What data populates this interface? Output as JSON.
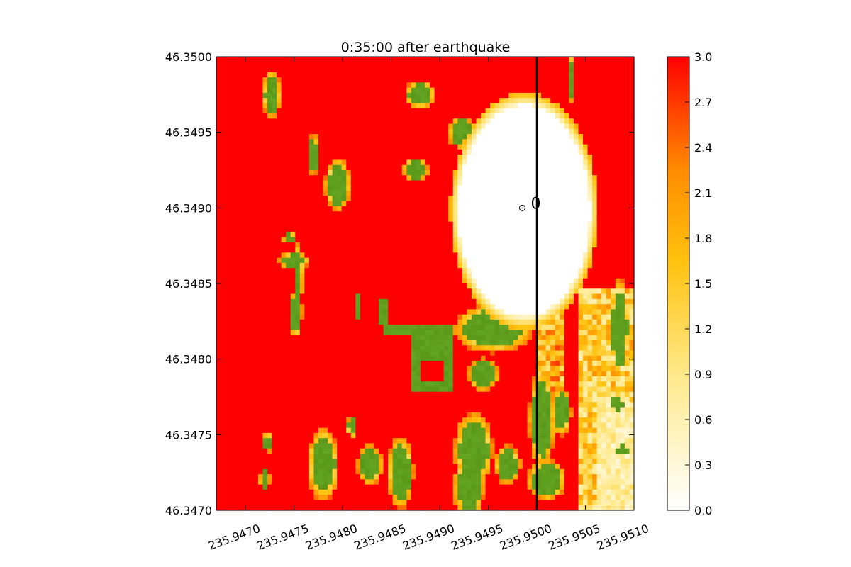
{
  "chart_data": {
    "type": "heatmap",
    "title": "0:35:00 after earthquake",
    "xlabel": "",
    "ylabel": "",
    "xlim": [
      235.9467,
      235.951
    ],
    "ylim": [
      46.347,
      46.35
    ],
    "x_ticks": [
      "235.9470",
      "235.9475",
      "235.9480",
      "235.9485",
      "235.9490",
      "235.9495",
      "235.9500",
      "235.9505",
      "235.9510"
    ],
    "x_tick_values": [
      235.947,
      235.9475,
      235.948,
      235.9485,
      235.949,
      235.9495,
      235.95,
      235.9505,
      235.951
    ],
    "y_ticks": [
      "46.3470",
      "46.3475",
      "46.3480",
      "46.3485",
      "46.3490",
      "46.3495",
      "46.3500"
    ],
    "y_tick_values": [
      46.347,
      46.3475,
      46.348,
      46.3485,
      46.349,
      46.3495,
      46.35
    ],
    "colorbar": {
      "min": 0.0,
      "max": 3.0,
      "ticks": [
        "0.0",
        "0.3",
        "0.6",
        "0.9",
        "1.2",
        "1.5",
        "1.8",
        "2.1",
        "2.4",
        "2.7",
        "3.0"
      ],
      "tick_values": [
        0.0,
        0.3,
        0.6,
        0.9,
        1.2,
        1.5,
        1.8,
        2.1,
        2.4,
        2.7,
        3.0
      ],
      "colors": [
        "#ffffff",
        "#ffe98a",
        "#ffc20e",
        "#ff8c00",
        "#ff0000"
      ]
    },
    "dry_land_color": "#5f9e1e",
    "gauge": {
      "label": "0",
      "x": 235.94985,
      "y": 46.349
    },
    "transect_x": 235.95,
    "crater_center": [
      235.94987,
      46.34898
    ],
    "grid": false,
    "colormap_note": "water depth field; green cells are dry land"
  }
}
